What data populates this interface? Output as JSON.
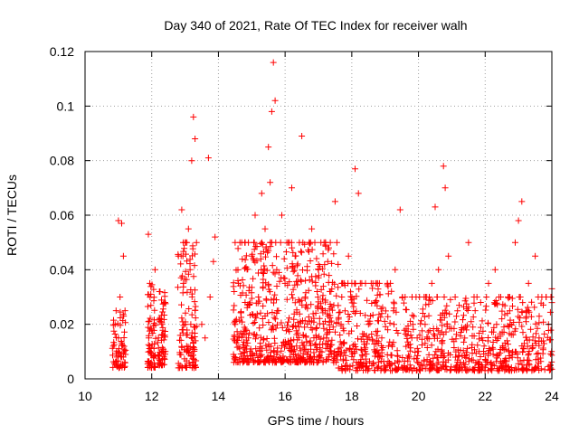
{
  "chart_data": {
    "type": "scatter",
    "title": "Day 340 of 2021, Rate Of TEC Index for receiver walh",
    "xlabel": "GPS time / hours",
    "ylabel": "ROTI / TECUs",
    "xlim": [
      10,
      24
    ],
    "ylim": [
      0,
      0.12
    ],
    "xticks": [
      "10",
      "12",
      "14",
      "16",
      "18",
      "20",
      "22",
      "24"
    ],
    "yticks": [
      "0",
      "0.02",
      "0.04",
      "0.06",
      "0.08",
      "0.1",
      "0.12"
    ],
    "grid": true,
    "marker": "plus",
    "marker_color": "#ff0000",
    "series": [
      {
        "name": "ROTI",
        "points": [
          [
            10.85,
            0.012
          ],
          [
            10.9,
            0.02
          ],
          [
            10.95,
            0.008
          ],
          [
            11.0,
            0.015
          ],
          [
            11.05,
            0.03
          ],
          [
            11.1,
            0.057
          ],
          [
            11.15,
            0.045
          ],
          [
            11.0,
            0.058
          ],
          [
            11.2,
            0.025
          ],
          [
            10.95,
            0.005
          ],
          [
            11.9,
            0.053
          ],
          [
            11.95,
            0.03
          ],
          [
            12.0,
            0.018
          ],
          [
            12.05,
            0.008
          ],
          [
            12.1,
            0.04
          ],
          [
            12.25,
            0.032
          ],
          [
            12.3,
            0.02
          ],
          [
            12.35,
            0.01
          ],
          [
            12.4,
            0.028
          ],
          [
            12.2,
            0.015
          ],
          [
            12.8,
            0.045
          ],
          [
            12.9,
            0.062
          ],
          [
            12.95,
            0.035
          ],
          [
            13.0,
            0.02
          ],
          [
            13.05,
            0.01
          ],
          [
            13.1,
            0.055
          ],
          [
            13.2,
            0.08
          ],
          [
            13.25,
            0.096
          ],
          [
            13.3,
            0.088
          ],
          [
            13.15,
            0.04
          ],
          [
            13.5,
            0.02
          ],
          [
            13.6,
            0.015
          ],
          [
            13.7,
            0.081
          ],
          [
            13.75,
            0.03
          ],
          [
            13.85,
            0.043
          ],
          [
            13.9,
            0.052
          ],
          [
            14.5,
            0.02
          ],
          [
            14.6,
            0.035
          ],
          [
            14.7,
            0.05
          ],
          [
            14.8,
            0.028
          ],
          [
            14.9,
            0.015
          ],
          [
            15.0,
            0.045
          ],
          [
            15.1,
            0.06
          ],
          [
            15.2,
            0.03
          ],
          [
            15.3,
            0.068
          ],
          [
            15.4,
            0.055
          ],
          [
            15.5,
            0.085
          ],
          [
            15.55,
            0.072
          ],
          [
            15.6,
            0.098
          ],
          [
            15.65,
            0.116
          ],
          [
            15.7,
            0.102
          ],
          [
            15.75,
            0.04
          ],
          [
            15.8,
            0.025
          ],
          [
            15.9,
            0.06
          ],
          [
            16.0,
            0.035
          ],
          [
            16.1,
            0.05
          ],
          [
            16.2,
            0.07
          ],
          [
            16.3,
            0.045
          ],
          [
            16.5,
            0.089
          ],
          [
            16.6,
            0.03
          ],
          [
            16.8,
            0.055
          ],
          [
            17.0,
            0.04
          ],
          [
            17.2,
            0.025
          ],
          [
            17.5,
            0.065
          ],
          [
            17.7,
            0.03
          ],
          [
            17.9,
            0.045
          ],
          [
            18.1,
            0.077
          ],
          [
            18.2,
            0.068
          ],
          [
            18.3,
            0.035
          ],
          [
            18.5,
            0.02
          ],
          [
            18.7,
            0.028
          ],
          [
            18.9,
            0.015
          ],
          [
            19.1,
            0.012
          ],
          [
            19.3,
            0.04
          ],
          [
            19.45,
            0.062
          ],
          [
            19.6,
            0.03
          ],
          [
            19.8,
            0.015
          ],
          [
            20.0,
            0.01
          ],
          [
            20.2,
            0.02
          ],
          [
            20.4,
            0.035
          ],
          [
            20.5,
            0.063
          ],
          [
            20.6,
            0.04
          ],
          [
            20.75,
            0.078
          ],
          [
            20.8,
            0.07
          ],
          [
            20.9,
            0.045
          ],
          [
            21.1,
            0.03
          ],
          [
            21.3,
            0.018
          ],
          [
            21.5,
            0.05
          ],
          [
            21.7,
            0.025
          ],
          [
            21.9,
            0.015
          ],
          [
            22.1,
            0.035
          ],
          [
            22.3,
            0.04
          ],
          [
            22.5,
            0.022
          ],
          [
            22.7,
            0.03
          ],
          [
            22.9,
            0.05
          ],
          [
            23.0,
            0.058
          ],
          [
            23.1,
            0.065
          ],
          [
            23.3,
            0.035
          ],
          [
            23.5,
            0.045
          ],
          [
            23.7,
            0.03
          ],
          [
            23.9,
            0.02
          ],
          [
            24.0,
            0.033
          ]
        ]
      }
    ],
    "bands": [
      {
        "x": [
          10.82,
          11.22
        ],
        "y": [
          0.004,
          0.025
        ]
      },
      {
        "x": [
          11.88,
          12.12
        ],
        "y": [
          0.004,
          0.035
        ]
      },
      {
        "x": [
          12.18,
          12.42
        ],
        "y": [
          0.005,
          0.032
        ]
      },
      {
        "x": [
          12.78,
          13.35
        ],
        "y": [
          0.004,
          0.05
        ]
      },
      {
        "x": [
          14.45,
          17.6
        ],
        "y": [
          0.006,
          0.05
        ]
      },
      {
        "x": [
          17.6,
          19.2
        ],
        "y": [
          0.003,
          0.035
        ]
      },
      {
        "x": [
          19.2,
          24.0
        ],
        "y": [
          0.003,
          0.03
        ]
      }
    ]
  }
}
